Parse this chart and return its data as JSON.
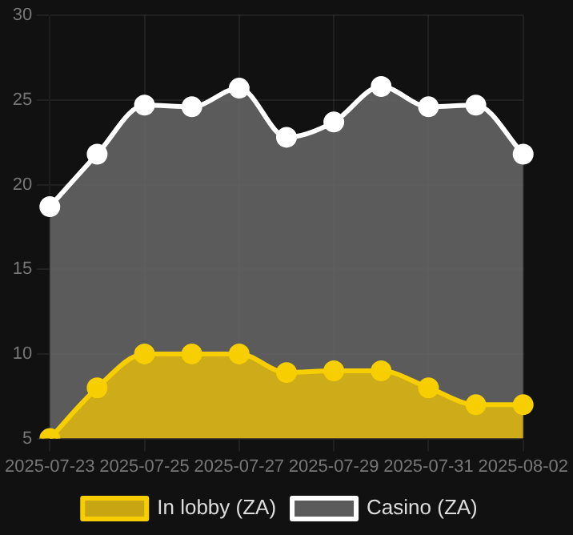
{
  "chart_data": {
    "type": "area",
    "categories": [
      "2025-07-23",
      null,
      "2025-07-25",
      null,
      "2025-07-27",
      null,
      "2025-07-29",
      null,
      "2025-07-31",
      null,
      "2025-08-02"
    ],
    "series": [
      {
        "name": "In lobby (ZA)",
        "color": "#f7cf00",
        "values": [
          5,
          8,
          10,
          10,
          10,
          8.9,
          9,
          9,
          8,
          7,
          7
        ]
      },
      {
        "name": "Casino (ZA)",
        "color": "#ffffff",
        "values": [
          18.7,
          21.8,
          24.7,
          24.6,
          25.7,
          22.8,
          23.7,
          25.8,
          24.6,
          24.7,
          21.8
        ]
      }
    ],
    "ylim": [
      5,
      30
    ],
    "yticks": [
      5,
      10,
      15,
      20,
      25,
      30
    ],
    "grid": true,
    "legend": "bottom",
    "marker": "circle"
  }
}
